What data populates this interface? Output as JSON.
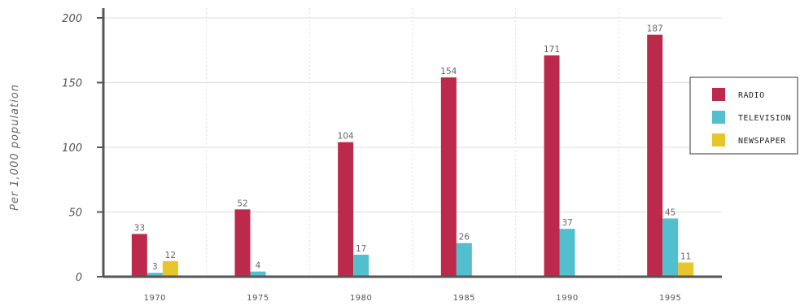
{
  "chart_data": {
    "type": "bar",
    "title": "",
    "xlabel": "",
    "ylabel": "Per 1,000 population",
    "categories": [
      "1970",
      "1975",
      "1980",
      "1985",
      "1990",
      "1995"
    ],
    "series": [
      {
        "name": "RADIO",
        "color": "#bb2a4b",
        "values": [
          33,
          52,
          104,
          154,
          171,
          187
        ]
      },
      {
        "name": "TELEVISION",
        "color": "#52bfcf",
        "values": [
          3,
          4,
          17,
          26,
          37,
          45
        ]
      },
      {
        "name": "NEWSPAPER",
        "color": "#e8c52a",
        "values": [
          12,
          null,
          null,
          null,
          null,
          11
        ]
      }
    ],
    "ylim": [
      0,
      200
    ],
    "yticks": [
      "0",
      "50",
      "100",
      "150",
      "200"
    ],
    "grid": true,
    "legend_position": "right"
  }
}
